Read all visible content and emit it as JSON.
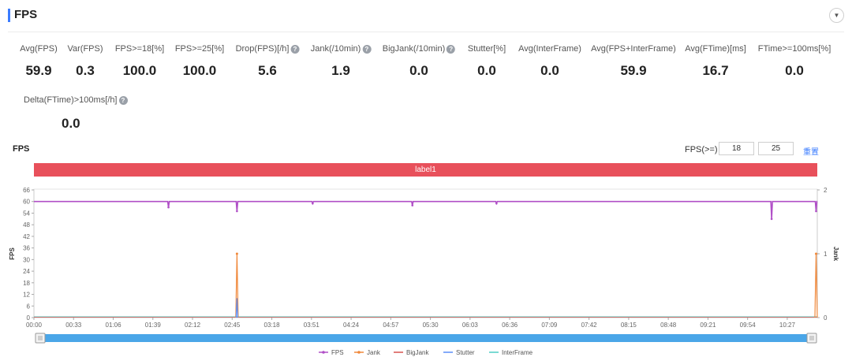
{
  "header": {
    "title": "FPS",
    "collapse_icon": "chevron-down-icon"
  },
  "metrics": [
    {
      "label": "Avg(FPS)",
      "value": "59.9",
      "help": false
    },
    {
      "label": "Var(FPS)",
      "value": "0.3",
      "help": false
    },
    {
      "label": "FPS>=18[%]",
      "value": "100.0",
      "help": false
    },
    {
      "label": "FPS>=25[%]",
      "value": "100.0",
      "help": false
    },
    {
      "label": "Drop(FPS)[/h]",
      "value": "5.6",
      "help": true
    },
    {
      "label": "Jank(/10min)",
      "value": "1.9",
      "help": true
    },
    {
      "label": "BigJank(/10min)",
      "value": "0.0",
      "help": true
    },
    {
      "label": "Stutter[%]",
      "value": "0.0",
      "help": false
    },
    {
      "label": "Avg(InterFrame)",
      "value": "0.0",
      "help": false
    },
    {
      "label": "Avg(FPS+InterFrame)",
      "value": "59.9",
      "help": false
    },
    {
      "label": "Avg(FTime)[ms]",
      "value": "16.7",
      "help": false
    },
    {
      "label": "FTime>=100ms[%]",
      "value": "0.0",
      "help": false
    }
  ],
  "metric_extra": {
    "label": "Delta(FTime)>100ms[/h]",
    "value": "0.0",
    "help": true
  },
  "chart_section": {
    "title": "FPS",
    "threshold_label": "FPS(>=)",
    "threshold_1": "18",
    "threshold_2": "25",
    "reset_label": "重置",
    "label_bar_text": "label1"
  },
  "colors": {
    "accent": "#3b7cff",
    "label_bar": "#e8505b",
    "fps": "#b04fc7",
    "jank": "#f0883a",
    "bigjank": "#d9534f",
    "stutter": "#5b8ff9",
    "interframe": "#4ecdc4",
    "slider": "#4aa6e8"
  },
  "chart_data": {
    "type": "line",
    "ylabel": "FPS",
    "y2label": "Jank",
    "ylim": [
      0,
      66
    ],
    "y2lim": [
      0,
      2
    ],
    "yticks": [
      0,
      6,
      12,
      18,
      24,
      30,
      36,
      42,
      48,
      54,
      60,
      66
    ],
    "y2ticks": [
      0,
      1,
      2
    ],
    "xticks": [
      "00:00",
      "00:33",
      "01:06",
      "01:39",
      "02:12",
      "02:45",
      "03:18",
      "03:51",
      "04:24",
      "04:57",
      "05:30",
      "06:03",
      "06:36",
      "07:09",
      "07:42",
      "08:15",
      "08:48",
      "09:21",
      "09:54",
      "10:27"
    ],
    "x_max_seconds": 652,
    "legend": [
      "FPS",
      "Jank",
      "BigJank",
      "Stutter",
      "InterFrame"
    ],
    "fps_baseline": 60,
    "fps_dips": [
      {
        "t": 112,
        "v": 57
      },
      {
        "t": 169,
        "v": 55
      },
      {
        "t": 232,
        "v": 59
      },
      {
        "t": 315,
        "v": 58
      },
      {
        "t": 385,
        "v": 59
      },
      {
        "t": 614,
        "v": 51
      },
      {
        "t": 651,
        "v": 55
      }
    ],
    "jank_spikes": [
      {
        "t": 169,
        "v": 1
      },
      {
        "t": 651,
        "v": 1
      }
    ],
    "stutter_spikes": [
      {
        "t": 169,
        "v": 10
      }
    ]
  }
}
